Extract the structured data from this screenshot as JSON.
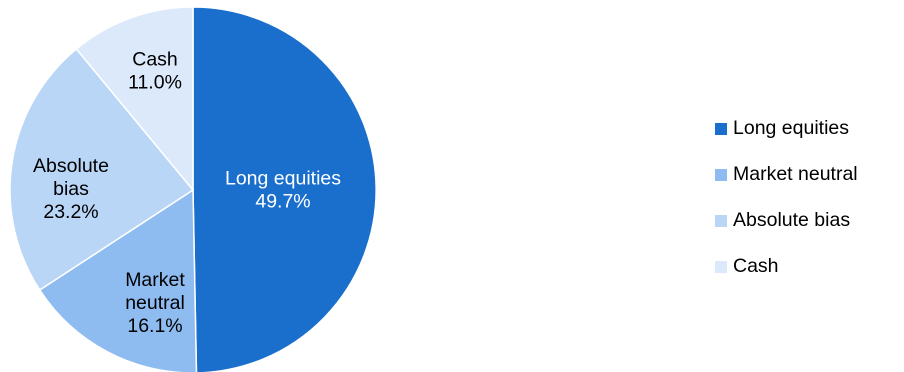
{
  "chart_data": {
    "type": "pie",
    "title": "",
    "start_angle_deg": 0,
    "direction": "clockwise",
    "legend_position": "right",
    "slices": [
      {
        "name": "Long equities",
        "value": 49.7,
        "label_lines": [
          "Long equities",
          "49.7%"
        ],
        "color": "#1a6fcd",
        "label_color": "#ffffff"
      },
      {
        "name": "Market neutral",
        "value": 16.1,
        "label_lines": [
          "Market",
          "neutral",
          "16.1%"
        ],
        "color": "#8ebcf0",
        "label_color": "#000000"
      },
      {
        "name": "Absolute bias",
        "value": 23.2,
        "label_lines": [
          "Absolute",
          "bias",
          "23.2%"
        ],
        "color": "#b9d6f7",
        "label_color": "#000000"
      },
      {
        "name": "Cash",
        "value": 11.0,
        "label_lines": [
          "Cash",
          "11.0%"
        ],
        "color": "#dbe9fb",
        "label_color": "#000000"
      }
    ]
  }
}
